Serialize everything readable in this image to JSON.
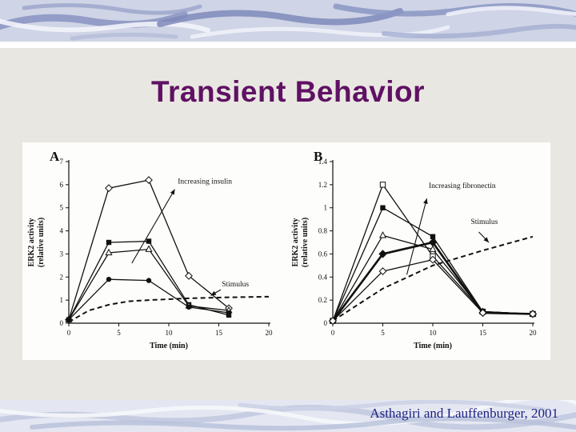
{
  "slide": {
    "title": "Transient Behavior",
    "citation": "Asthagiri and Lauffenburger, 2001"
  },
  "colors": {
    "slide_bg": "#e9e7e1",
    "title_color": "#5f1163",
    "citation_color": "#1e2282",
    "figure_bg": "#fdfdfb",
    "band_bg_top": "#cfd4e6",
    "band_bg_bottom": "#e4e7f2",
    "ink": "#111111"
  },
  "chart_data": [
    {
      "type": "line",
      "panel_label": "A",
      "ylabel_line1": "ERK2 activity",
      "ylabel_line2": "(relative units)",
      "xlabel": "Time (min)",
      "xlim": [
        0,
        20
      ],
      "ylim": [
        0,
        7
      ],
      "xticks": [
        0,
        5,
        10,
        15,
        20
      ],
      "yticks": [
        0,
        1,
        2,
        3,
        4,
        5,
        6,
        7
      ],
      "x": [
        0,
        4,
        8,
        12,
        16
      ],
      "series": [
        {
          "name": "insulin-highest",
          "marker": "open-diamond",
          "values": [
            0.15,
            5.85,
            6.2,
            2.05,
            0.65
          ]
        },
        {
          "name": "insulin-high",
          "marker": "filled-square",
          "values": [
            0.15,
            3.5,
            3.55,
            0.8,
            0.35
          ]
        },
        {
          "name": "insulin-medium",
          "marker": "open-triangle",
          "values": [
            0.15,
            3.05,
            3.2,
            0.75,
            0.55
          ]
        },
        {
          "name": "insulin-low",
          "marker": "filled-circle",
          "values": [
            0.15,
            1.9,
            1.85,
            0.7,
            0.45
          ]
        }
      ],
      "stimulus": {
        "name": "Stimulus",
        "x": [
          0,
          2,
          4,
          6,
          8,
          12,
          16,
          20
        ],
        "values": [
          0.05,
          0.55,
          0.8,
          0.95,
          1.0,
          1.08,
          1.12,
          1.15
        ]
      },
      "annotations": [
        {
          "text": "Increasing insulin",
          "x": 10.9,
          "y": 6.05,
          "arrow": {
            "x1": 6.3,
            "y1": 2.6,
            "x2": 10.6,
            "y2": 5.8
          }
        },
        {
          "text": "Stimulus",
          "x": 15.3,
          "y": 1.6,
          "arrow": {
            "x1": 15.2,
            "y1": 1.45,
            "x2": 14.2,
            "y2": 1.2
          }
        }
      ]
    },
    {
      "type": "line",
      "panel_label": "B",
      "ylabel_line1": "ERK2 activity",
      "ylabel_line2": "(relative units)",
      "xlabel": "Time (min)",
      "xlim": [
        0,
        20
      ],
      "ylim": [
        0,
        1.4
      ],
      "xticks": [
        0,
        5,
        10,
        15,
        20
      ],
      "yticks": [
        0,
        0.2,
        0.4,
        0.6,
        0.8,
        1,
        1.2,
        1.4
      ],
      "x": [
        0,
        5,
        10,
        15,
        20
      ],
      "series": [
        {
          "name": "fibronectin-highest",
          "marker": "open-square",
          "values": [
            0.02,
            1.2,
            0.58,
            0.1,
            0.08
          ]
        },
        {
          "name": "fibronectin-high",
          "marker": "filled-square",
          "values": [
            0.02,
            1.0,
            0.75,
            0.1,
            0.08
          ]
        },
        {
          "name": "fibronectin-medium",
          "marker": "open-triangle",
          "values": [
            0.02,
            0.76,
            0.64,
            0.1,
            0.08
          ]
        },
        {
          "name": "fibronectin-low",
          "marker": "filled-diamond",
          "width": 2.6,
          "markersize": 1.3,
          "values": [
            0.02,
            0.6,
            0.7,
            0.09,
            0.08
          ]
        },
        {
          "name": "fibronectin-lowest",
          "marker": "open-diamond",
          "values": [
            0.02,
            0.45,
            0.55,
            0.09,
            0.08
          ]
        }
      ],
      "stimulus": {
        "name": "Stimulus",
        "x": [
          0,
          5,
          10,
          15,
          20
        ],
        "values": [
          0.02,
          0.3,
          0.5,
          0.63,
          0.75
        ]
      },
      "annotations": [
        {
          "text": "Increasing fibronectin",
          "x": 9.6,
          "y": 1.17,
          "arrow": {
            "x1": 7.4,
            "y1": 0.42,
            "x2": 9.4,
            "y2": 1.08
          }
        },
        {
          "text": "Stimulus",
          "x": 13.8,
          "y": 0.86,
          "arrow": {
            "x1": 14.6,
            "y1": 0.79,
            "x2": 15.6,
            "y2": 0.7
          }
        }
      ]
    }
  ]
}
